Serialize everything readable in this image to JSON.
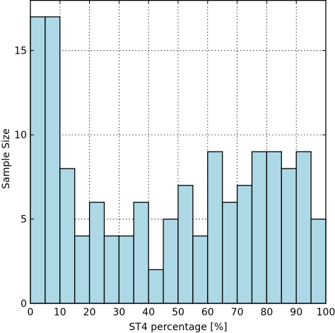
{
  "chart_data": {
    "type": "bar",
    "title": "",
    "xlabel": "ST4 percentage [%]",
    "ylabel": "Sample Size",
    "bin_edges": [
      0,
      5,
      10,
      15,
      20,
      25,
      30,
      35,
      40,
      45,
      50,
      55,
      60,
      65,
      70,
      75,
      80,
      85,
      90,
      95,
      100
    ],
    "values": [
      17,
      17,
      8,
      4,
      6,
      4,
      4,
      6,
      2,
      5,
      7,
      4,
      9,
      6,
      7,
      9,
      9,
      8,
      9,
      5
    ],
    "xlim": [
      0,
      100
    ],
    "ylim": [
      0,
      18
    ],
    "xticks": [
      0,
      10,
      20,
      30,
      40,
      50,
      60,
      70,
      80,
      90,
      100
    ],
    "yticks": [
      0,
      5,
      10,
      15
    ],
    "grid": true,
    "bar_color": "#add8e6",
    "edge_color": "#000000"
  }
}
